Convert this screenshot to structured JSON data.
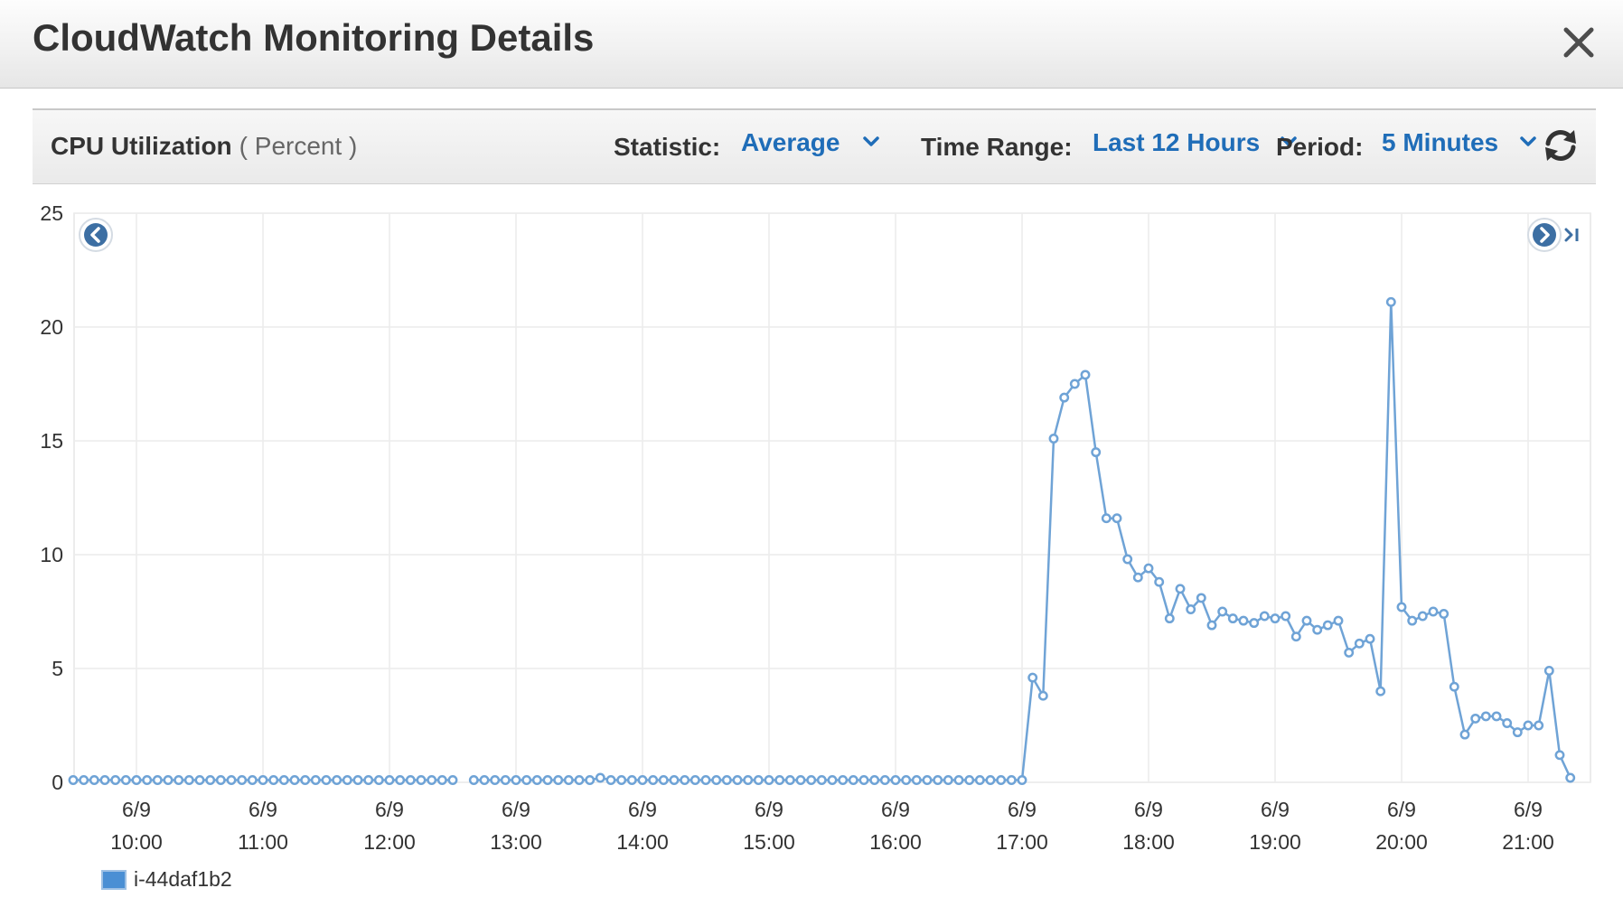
{
  "dialog": {
    "title": "CloudWatch Monitoring Details"
  },
  "toolbar": {
    "metric_name": "CPU Utilization",
    "metric_unit": "( Percent )",
    "statistic_label": "Statistic:",
    "statistic_value": "Average",
    "time_range_label": "Time Range:",
    "time_range_value": "Last 12 Hours",
    "period_label": "Period:",
    "period_value": "5 Minutes"
  },
  "icons": {
    "close": "close-icon",
    "dropdown": "chevron-down-icon",
    "refresh": "refresh-icon",
    "prev": "chevron-left-circle-icon",
    "next": "chevron-right-circle-icon",
    "latest": "skip-to-end-icon"
  },
  "colors": {
    "series": "#6fa3d6",
    "series_marker_fill": "#ffffff",
    "link": "#1f6db8",
    "legend_swatch": "#4a8fd4"
  },
  "chart_data": {
    "type": "line",
    "ylim": [
      0,
      25
    ],
    "y_ticks": [
      0,
      5,
      10,
      15,
      20,
      25
    ],
    "x_ticks": [
      {
        "date": "6/9",
        "time": "10:00"
      },
      {
        "date": "6/9",
        "time": "11:00"
      },
      {
        "date": "6/9",
        "time": "12:00"
      },
      {
        "date": "6/9",
        "time": "13:00"
      },
      {
        "date": "6/9",
        "time": "14:00"
      },
      {
        "date": "6/9",
        "time": "15:00"
      },
      {
        "date": "6/9",
        "time": "16:00"
      },
      {
        "date": "6/9",
        "time": "17:00"
      },
      {
        "date": "6/9",
        "time": "18:00"
      },
      {
        "date": "6/9",
        "time": "19:00"
      },
      {
        "date": "6/9",
        "time": "20:00"
      },
      {
        "date": "6/9",
        "time": "21:00"
      }
    ],
    "x_start": "09:30",
    "x_end": "21:35",
    "grid": true,
    "legend_position": "bottom-left",
    "series": [
      {
        "name": "i-44daf1b2",
        "points": [
          [
            "09:30",
            0.1
          ],
          [
            "09:35",
            0.1
          ],
          [
            "09:40",
            0.1
          ],
          [
            "09:45",
            0.1
          ],
          [
            "09:50",
            0.1
          ],
          [
            "09:55",
            0.1
          ],
          [
            "10:00",
            0.1
          ],
          [
            "10:05",
            0.1
          ],
          [
            "10:10",
            0.1
          ],
          [
            "10:15",
            0.1
          ],
          [
            "10:20",
            0.1
          ],
          [
            "10:25",
            0.1
          ],
          [
            "10:30",
            0.1
          ],
          [
            "10:35",
            0.1
          ],
          [
            "10:40",
            0.1
          ],
          [
            "10:45",
            0.1
          ],
          [
            "10:50",
            0.1
          ],
          [
            "10:55",
            0.1
          ],
          [
            "11:00",
            0.1
          ],
          [
            "11:05",
            0.1
          ],
          [
            "11:10",
            0.1
          ],
          [
            "11:15",
            0.1
          ],
          [
            "11:20",
            0.1
          ],
          [
            "11:25",
            0.1
          ],
          [
            "11:30",
            0.1
          ],
          [
            "11:35",
            0.1
          ],
          [
            "11:40",
            0.1
          ],
          [
            "11:45",
            0.1
          ],
          [
            "11:50",
            0.1
          ],
          [
            "11:55",
            0.1
          ],
          [
            "12:00",
            0.1
          ],
          [
            "12:05",
            0.1
          ],
          [
            "12:10",
            0.1
          ],
          [
            "12:15",
            0.1
          ],
          [
            "12:20",
            0.1
          ],
          [
            "12:25",
            0.1
          ],
          [
            "12:30",
            0.1
          ],
          null,
          [
            "12:40",
            0.1
          ],
          [
            "12:45",
            0.1
          ],
          [
            "12:50",
            0.1
          ],
          [
            "12:55",
            0.1
          ],
          [
            "13:00",
            0.1
          ],
          [
            "13:05",
            0.1
          ],
          [
            "13:10",
            0.1
          ],
          [
            "13:15",
            0.1
          ],
          [
            "13:20",
            0.1
          ],
          [
            "13:25",
            0.1
          ],
          [
            "13:30",
            0.1
          ],
          [
            "13:35",
            0.1
          ],
          [
            "13:40",
            0.2
          ],
          [
            "13:45",
            0.1
          ],
          [
            "13:50",
            0.1
          ],
          [
            "13:55",
            0.1
          ],
          [
            "14:00",
            0.1
          ],
          [
            "14:05",
            0.1
          ],
          [
            "14:10",
            0.1
          ],
          [
            "14:15",
            0.1
          ],
          [
            "14:20",
            0.1
          ],
          [
            "14:25",
            0.1
          ],
          [
            "14:30",
            0.1
          ],
          [
            "14:35",
            0.1
          ],
          [
            "14:40",
            0.1
          ],
          [
            "14:45",
            0.1
          ],
          [
            "14:50",
            0.1
          ],
          [
            "14:55",
            0.1
          ],
          [
            "15:00",
            0.1
          ],
          [
            "15:05",
            0.1
          ],
          [
            "15:10",
            0.1
          ],
          [
            "15:15",
            0.1
          ],
          [
            "15:20",
            0.1
          ],
          [
            "15:25",
            0.1
          ],
          [
            "15:30",
            0.1
          ],
          [
            "15:35",
            0.1
          ],
          [
            "15:40",
            0.1
          ],
          [
            "15:45",
            0.1
          ],
          [
            "15:50",
            0.1
          ],
          [
            "15:55",
            0.1
          ],
          [
            "16:00",
            0.1
          ],
          [
            "16:05",
            0.1
          ],
          [
            "16:10",
            0.1
          ],
          [
            "16:15",
            0.1
          ],
          [
            "16:20",
            0.1
          ],
          [
            "16:25",
            0.1
          ],
          [
            "16:30",
            0.1
          ],
          [
            "16:35",
            0.1
          ],
          [
            "16:40",
            0.1
          ],
          [
            "16:45",
            0.1
          ],
          [
            "16:50",
            0.1
          ],
          [
            "16:55",
            0.1
          ],
          [
            "17:00",
            0.1
          ],
          [
            "17:05",
            4.6
          ],
          [
            "17:10",
            3.8
          ],
          [
            "17:15",
            15.1
          ],
          [
            "17:20",
            16.9
          ],
          [
            "17:25",
            17.5
          ],
          [
            "17:30",
            17.9
          ],
          [
            "17:35",
            14.5
          ],
          [
            "17:40",
            11.6
          ],
          [
            "17:45",
            11.6
          ],
          [
            "17:50",
            9.8
          ],
          [
            "17:55",
            9.0
          ],
          [
            "18:00",
            9.4
          ],
          [
            "18:05",
            8.8
          ],
          [
            "18:10",
            7.2
          ],
          [
            "18:15",
            8.5
          ],
          [
            "18:20",
            7.6
          ],
          [
            "18:25",
            8.1
          ],
          [
            "18:30",
            6.9
          ],
          [
            "18:35",
            7.5
          ],
          [
            "18:40",
            7.2
          ],
          [
            "18:45",
            7.1
          ],
          [
            "18:50",
            7.0
          ],
          [
            "18:55",
            7.3
          ],
          [
            "19:00",
            7.2
          ],
          [
            "19:05",
            7.3
          ],
          [
            "19:10",
            6.4
          ],
          [
            "19:15",
            7.1
          ],
          [
            "19:20",
            6.7
          ],
          [
            "19:25",
            6.9
          ],
          [
            "19:30",
            7.1
          ],
          [
            "19:35",
            5.7
          ],
          [
            "19:40",
            6.1
          ],
          [
            "19:45",
            6.3
          ],
          [
            "19:50",
            4.0
          ],
          [
            "19:55",
            21.1
          ],
          [
            "20:00",
            7.7
          ],
          [
            "20:05",
            7.1
          ],
          [
            "20:10",
            7.3
          ],
          [
            "20:15",
            7.5
          ],
          [
            "20:20",
            7.4
          ],
          [
            "20:25",
            4.2
          ],
          [
            "20:30",
            2.1
          ],
          [
            "20:35",
            2.8
          ],
          [
            "20:40",
            2.9
          ],
          [
            "20:45",
            2.9
          ],
          [
            "20:50",
            2.6
          ],
          [
            "20:55",
            2.2
          ],
          [
            "21:00",
            2.5
          ],
          [
            "21:05",
            2.5
          ],
          [
            "21:10",
            4.9
          ],
          [
            "21:15",
            1.2
          ],
          [
            "21:20",
            0.2
          ]
        ]
      }
    ]
  }
}
